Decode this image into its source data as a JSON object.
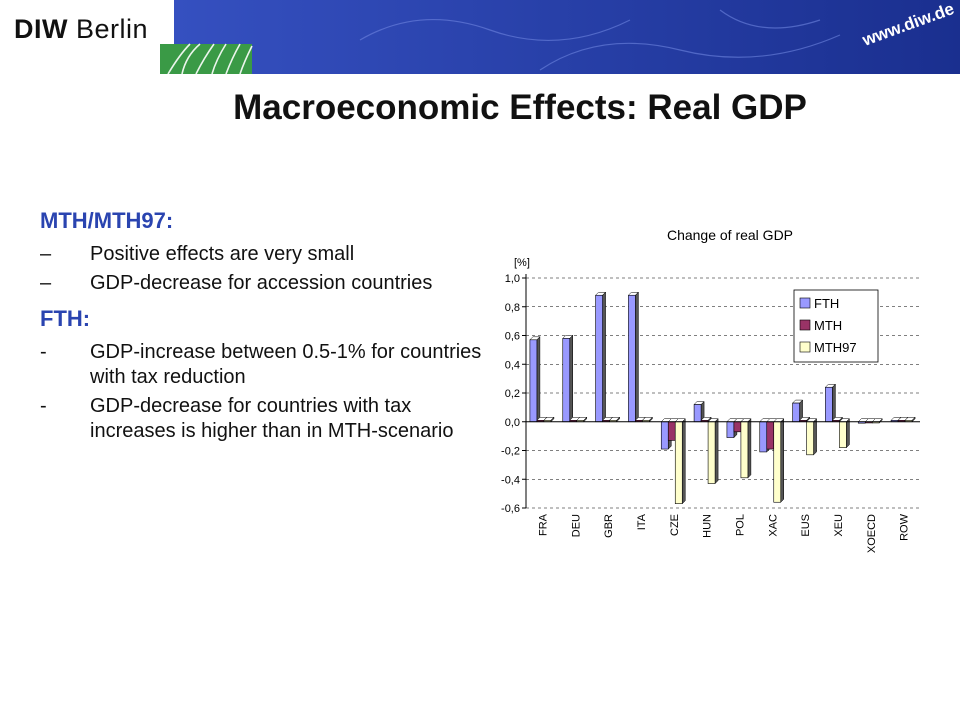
{
  "header": {
    "logo_bold": "DIW",
    "logo_rest": "Berlin",
    "url": "www.diw.de"
  },
  "slide": {
    "title": "Macroeconomic Effects: Real GDP",
    "sections": [
      {
        "heading": "MTH/MTH97:",
        "bullets": [
          {
            "marker": "–",
            "text": "Positive effects are very small"
          },
          {
            "marker": "–",
            "text": "GDP-decrease for accession countries"
          }
        ]
      },
      {
        "heading": "FTH:",
        "bullets": [
          {
            "marker": "-",
            "text": "GDP-increase between 0.5-1% for countries with tax reduction"
          },
          {
            "marker": "-",
            "text": "GDP-decrease for countries with tax increases is higher than in MTH-scenario"
          }
        ]
      }
    ]
  },
  "colors": {
    "heading_blue": "#2a44b0",
    "banner_blue": "#1f3aa6",
    "banner_green": "#3a9a46"
  },
  "chart_data": {
    "type": "bar",
    "title": "Change of real GDP",
    "ylabel": "[%]",
    "ylim": [
      -0.6,
      1.0
    ],
    "yticks": [
      1.0,
      0.8,
      0.6,
      0.4,
      0.2,
      0.0,
      -0.2,
      -0.4,
      -0.6
    ],
    "ytick_labels": [
      "1,0",
      "0,8",
      "0,6",
      "0,4",
      "0,2",
      "0,0",
      "-0,2",
      "-0,4",
      "-0,6"
    ],
    "grid": "horizontal dashed",
    "legend_position": "top-right",
    "categories": [
      "FRA",
      "DEU",
      "GBR",
      "ITA",
      "CZE",
      "HUN",
      "POL",
      "XAC",
      "EUS",
      "XEU",
      "XOECD",
      "ROW"
    ],
    "series": [
      {
        "name": "FTH",
        "color": "#9999ff",
        "values": [
          0.57,
          0.58,
          0.88,
          0.88,
          -0.19,
          0.12,
          -0.11,
          -0.21,
          0.13,
          0.24,
          -0.01,
          0.01
        ]
      },
      {
        "name": "MTH",
        "color": "#993366",
        "values": [
          0.01,
          0.01,
          0.01,
          0.01,
          -0.13,
          0.01,
          -0.07,
          -0.19,
          0.01,
          0.01,
          0.0,
          0.01
        ]
      },
      {
        "name": "MTH97",
        "color": "#ffffcc",
        "values": [
          0.01,
          0.01,
          0.01,
          0.01,
          -0.57,
          -0.43,
          -0.39,
          -0.56,
          -0.23,
          -0.18,
          0.0,
          0.01
        ]
      }
    ]
  }
}
